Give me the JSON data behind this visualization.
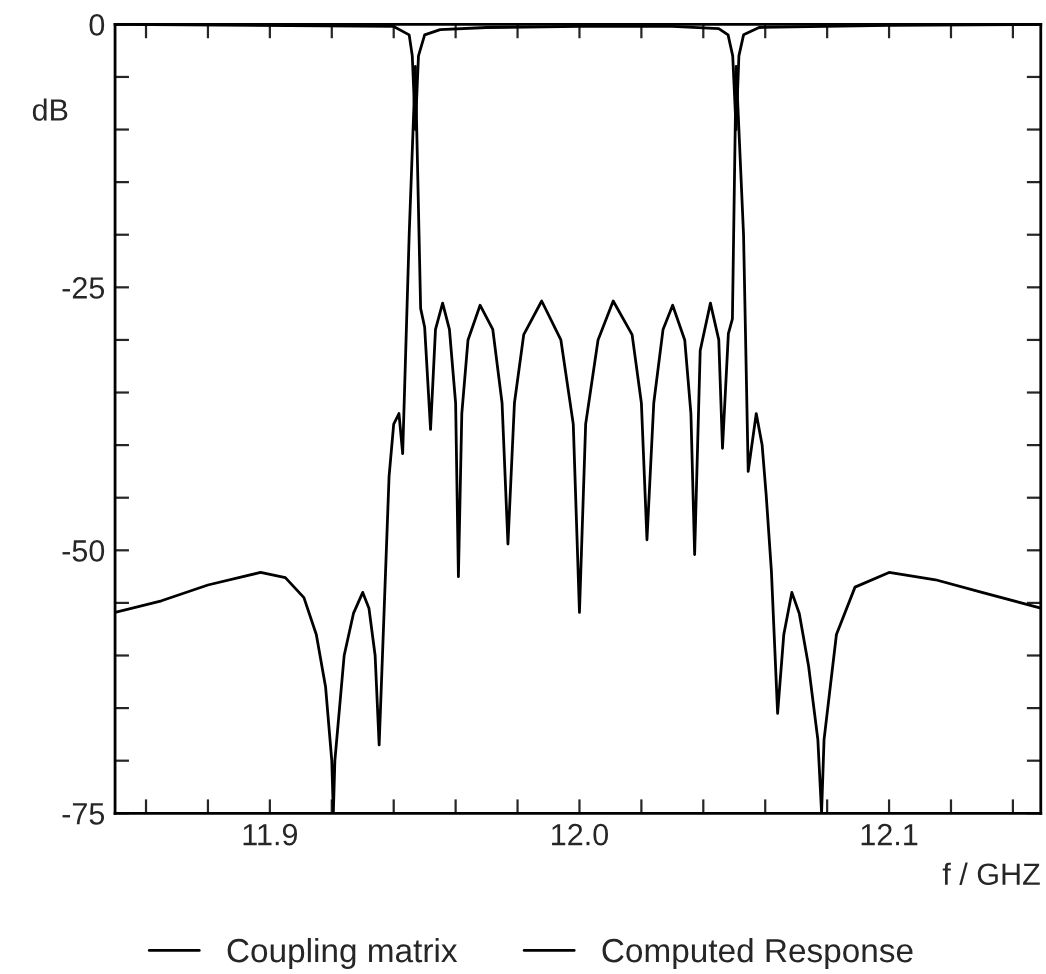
{
  "chart_data": {
    "type": "line",
    "xlabel": "f / GHZ",
    "ylabel": "dB",
    "xlim": [
      11.85,
      12.149
    ],
    "ylim": [
      -75,
      0
    ],
    "xticks": [
      {
        "value": 11.86,
        "label": null
      },
      {
        "value": 11.88,
        "label": null
      },
      11.9,
      {
        "value": 11.92,
        "label": null
      },
      {
        "value": 11.94,
        "label": null
      },
      {
        "value": 11.96,
        "label": null
      },
      {
        "value": 11.98,
        "label": null
      },
      {
        "value": 12.0,
        "label": "12.0"
      },
      {
        "value": 12.02,
        "label": null
      },
      {
        "value": 12.04,
        "label": null
      },
      {
        "value": 12.06,
        "label": null
      },
      {
        "value": 12.08,
        "label": null
      },
      12.1,
      {
        "value": 12.12,
        "label": null
      },
      {
        "value": 12.14,
        "label": null
      }
    ],
    "yticks": [
      0,
      {
        "value": -5,
        "label": null
      },
      {
        "value": -10,
        "label": null
      },
      {
        "value": -15,
        "label": null
      },
      {
        "value": -20,
        "label": null
      },
      -25,
      {
        "value": -30,
        "label": null
      },
      {
        "value": -35,
        "label": null
      },
      {
        "value": -40,
        "label": null
      },
      {
        "value": -45,
        "label": null
      },
      -50,
      {
        "value": -55,
        "label": null
      },
      {
        "value": -60,
        "label": null
      },
      {
        "value": -65,
        "label": null
      },
      {
        "value": -70,
        "label": null
      },
      -75
    ],
    "grid": false,
    "legend": "bottom",
    "line_style": "solid",
    "series": [
      {
        "name": "Coupling matrix",
        "color": "#000000",
        "x": [
          11.85,
          11.94,
          11.945,
          11.946,
          11.947,
          11.948,
          11.95,
          11.955,
          11.97,
          12.0,
          12.03,
          12.045,
          12.048,
          12.0495,
          12.0506,
          12.0515,
          12.053,
          12.058,
          12.1,
          12.149
        ],
        "values": [
          0,
          -0.2,
          -1,
          -3,
          -10,
          -3,
          -1,
          -0.5,
          -0.3,
          -0.2,
          -0.2,
          -0.4,
          -1,
          -3,
          -10,
          -3,
          -1,
          -0.3,
          -0.1,
          0
        ]
      },
      {
        "name": "Computed Response",
        "color": "#000000",
        "x": [
          11.85,
          11.865,
          11.88,
          11.897,
          11.905,
          11.911,
          11.915,
          11.918,
          11.92,
          11.9205,
          11.921,
          11.924,
          11.927,
          11.93,
          11.932,
          11.934,
          11.9353,
          11.937,
          11.9385,
          11.94,
          11.9417,
          11.9429,
          11.945,
          11.947,
          11.9487,
          11.95,
          11.9519,
          11.9535,
          11.9558,
          11.958,
          11.96,
          11.9609,
          11.962,
          11.964,
          11.9679,
          11.972,
          11.975,
          11.9769,
          11.979,
          11.982,
          11.9878,
          11.994,
          11.998,
          12.0,
          12.002,
          12.006,
          12.0109,
          12.017,
          12.02,
          12.0218,
          12.024,
          12.027,
          12.0301,
          12.034,
          12.036,
          12.0372,
          12.039,
          12.0423,
          12.045,
          12.0462,
          12.0481,
          12.0494,
          12.0506,
          12.053,
          12.0545,
          12.0571,
          12.059,
          12.0603,
          12.062,
          12.064,
          12.066,
          12.0686,
          12.071,
          12.074,
          12.077,
          12.0782,
          12.079,
          12.083,
          12.089,
          12.1,
          12.115,
          12.13,
          12.149
        ],
        "values": [
          -55.9,
          -54.8,
          -53.3,
          -52.1,
          -52.6,
          -54.5,
          -58,
          -63,
          -70,
          -75,
          -70,
          -60,
          -56,
          -54,
          -55.5,
          -60,
          -68.5,
          -55,
          -43,
          -38,
          -37,
          -40.8,
          -20,
          -4,
          -27,
          -28.8,
          -38.5,
          -29,
          -26.5,
          -29,
          -36,
          -52.5,
          -37,
          -30,
          -26.7,
          -29,
          -36,
          -49.4,
          -36,
          -29.5,
          -26.3,
          -30,
          -38,
          -55.9,
          -38,
          -30,
          -26.3,
          -29.5,
          -36,
          -49,
          -36,
          -29,
          -26.7,
          -30,
          -37,
          -50.4,
          -31,
          -26.5,
          -30,
          -40.3,
          -29.4,
          -28,
          -4,
          -20,
          -42.5,
          -37,
          -40,
          -44.7,
          -52,
          -65.5,
          -58,
          -54,
          -56,
          -61,
          -68,
          -75,
          -68,
          -58,
          -53.5,
          -52.1,
          -52.8,
          -54,
          -55.5
        ]
      }
    ]
  }
}
